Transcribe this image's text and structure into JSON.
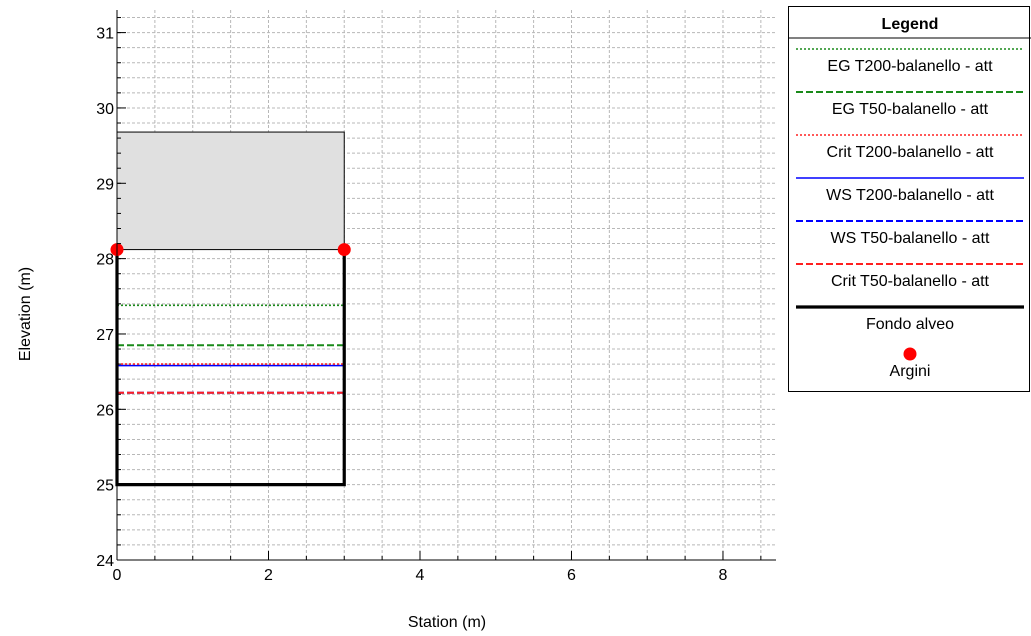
{
  "chart_data": {
    "type": "line",
    "xlabel": "Station (m)",
    "ylabel": "Elevation (m)",
    "xlim": [
      0,
      8.7
    ],
    "ylim": [
      24,
      31.3
    ],
    "x_ticks": [
      0,
      2,
      4,
      6,
      8
    ],
    "y_ticks": [
      24,
      25,
      26,
      27,
      28,
      29,
      30,
      31
    ],
    "grid": true,
    "legend_position": "right",
    "legend_title": "Legend",
    "deck": {
      "x": [
        0,
        3
      ],
      "y": [
        28.12,
        29.68
      ],
      "color": "#e0e0e0"
    },
    "series": [
      {
        "name": "EG T200-balanello - att",
        "x": [
          0,
          3
        ],
        "y": [
          27.38,
          27.38
        ],
        "color": "#1a8a1a",
        "style": "dotted"
      },
      {
        "name": "EG T50-balanello - att",
        "x": [
          0,
          3
        ],
        "y": [
          26.85,
          26.85
        ],
        "color": "#1a8a1a",
        "style": "dashed"
      },
      {
        "name": "Crit T200-balanello - att",
        "x": [
          0,
          3
        ],
        "y": [
          26.6,
          26.6
        ],
        "color": "#ff2020",
        "style": "dotted"
      },
      {
        "name": "WS T200-balanello - att",
        "x": [
          0,
          3
        ],
        "y": [
          26.58,
          26.58
        ],
        "color": "#0000ff",
        "style": "solid"
      },
      {
        "name": "WS T50-balanello - att",
        "x": [
          0,
          3
        ],
        "y": [
          26.22,
          26.22
        ],
        "color": "#0000ff",
        "style": "dashed"
      },
      {
        "name": "Crit T50-balanello - att",
        "x": [
          0,
          3
        ],
        "y": [
          26.22,
          26.22
        ],
        "color": "#ff2020",
        "style": "dashed"
      },
      {
        "name": "Fondo alveo",
        "x": [
          0,
          0,
          3,
          3
        ],
        "y": [
          28.12,
          25,
          25,
          28.12
        ],
        "color": "#000000",
        "style": "thick"
      },
      {
        "name": "Argini",
        "x": [
          0,
          3
        ],
        "y": [
          28.12,
          28.12
        ],
        "color": "#ff0000",
        "style": "marker"
      }
    ]
  }
}
